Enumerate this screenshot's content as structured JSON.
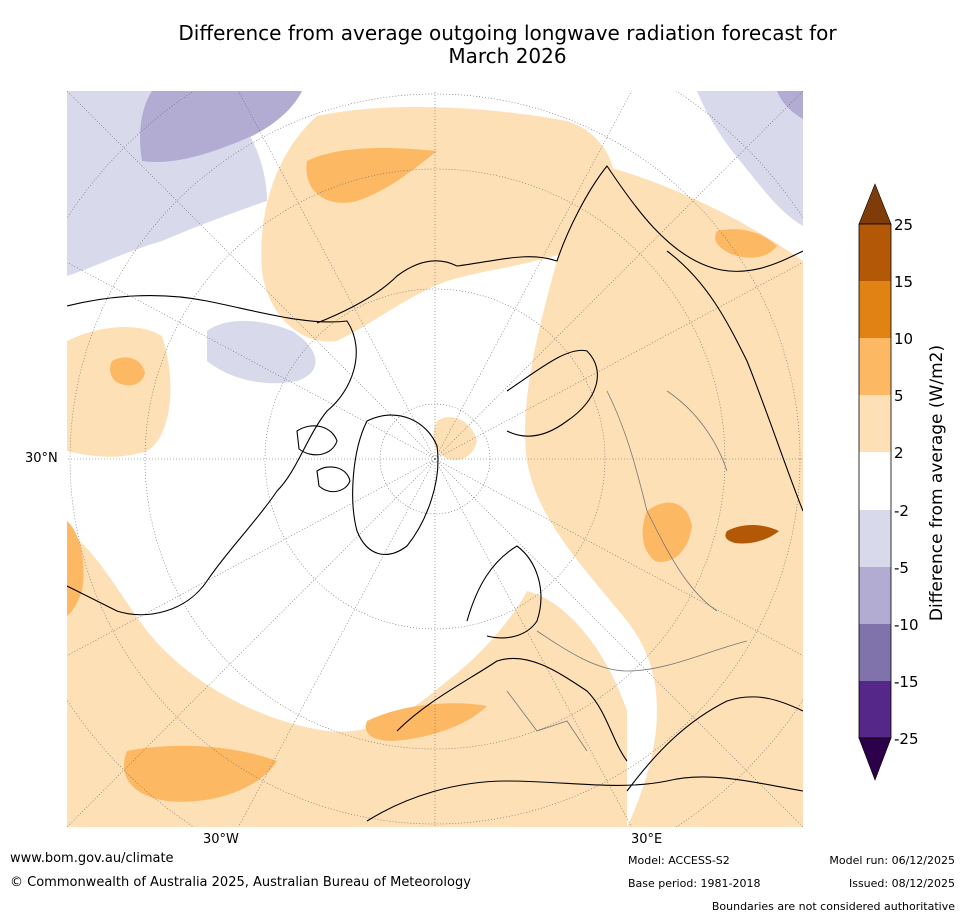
{
  "title_line1": "Difference from average outgoing longwave radiation forecast for",
  "title_line2": "March 2026",
  "map": {
    "labels": {
      "lat_30n": "30°N",
      "lon_30w": "30°W",
      "lon_30e": "30°E"
    }
  },
  "colorbar": {
    "title": "Difference from average (W/m2)",
    "ticks": [
      "25",
      "15",
      "10",
      "5",
      "2",
      "-2",
      "-5",
      "-10",
      "-15",
      "-25"
    ],
    "colors": {
      "over": "#7f3b08",
      "c15_25": "#b35806",
      "c10_15": "#e08214",
      "c5_10": "#fdb863",
      "c2_5": "#fee0b6",
      "neutral": "#ffffff",
      "n2_5": "#d8daeb",
      "n5_10": "#b2abd2",
      "n10_15": "#8073ac",
      "n15_25": "#542788",
      "under": "#2d004b"
    }
  },
  "footer": {
    "url": "www.bom.gov.au/climate",
    "copyright": "© Commonwealth of Australia 2025, Australian Bureau of Meteorology",
    "model": "Model: ACCESS-S2",
    "base_period": "Base period: 1981-2018",
    "model_run": "Model run: 06/12/2025",
    "issued": "Issued: 08/12/2025",
    "disclaimer": "Boundaries are not considered authoritative"
  }
}
